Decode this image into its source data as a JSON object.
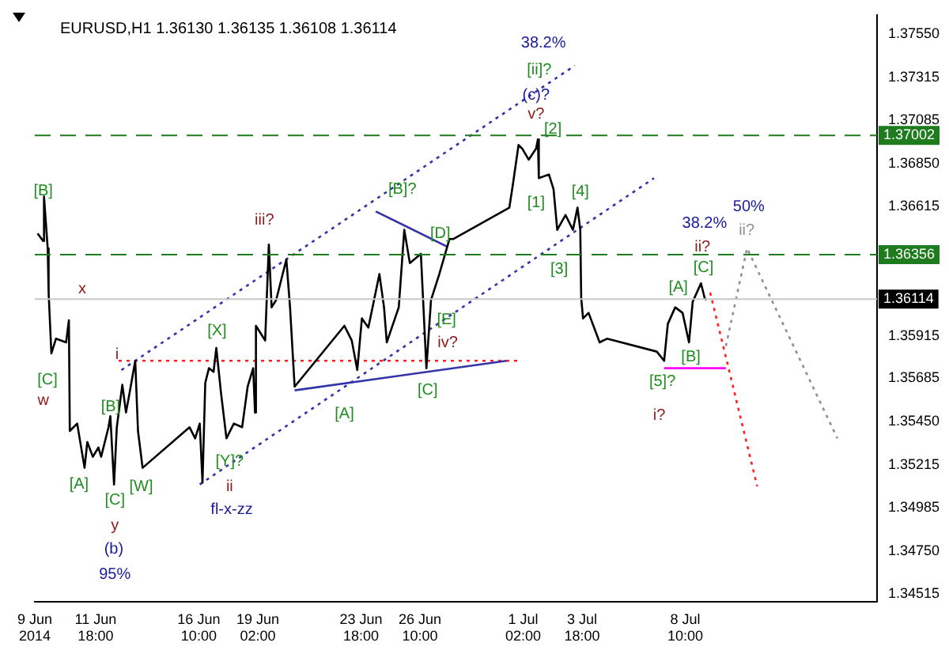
{
  "chart_data": {
    "type": "line",
    "title": "EURUSD,H1 1.36130 1.36135 1.36108 1.36114",
    "legend": false,
    "grid": false,
    "marker": "none",
    "xlim": [
      "2014-06-09T00:00",
      "2014-07-17T02:00"
    ],
    "ylim": [
      1.34475,
      1.37655
    ],
    "xticks": [
      {
        "value": "2014-06-09T00:00",
        "label": "9 Jun 2014"
      },
      {
        "value": "2014-06-11T18:00",
        "label": "11 Jun 18:00"
      },
      {
        "value": "2014-06-16T10:00",
        "label": "16 Jun 10:00"
      },
      {
        "value": "2014-06-19T02:00",
        "label": "19 Jun 02:00"
      },
      {
        "value": "2014-06-23T18:00",
        "label": "23 Jun 18:00"
      },
      {
        "value": "2014-06-26T10:00",
        "label": "26 Jun 10:00"
      },
      {
        "value": "2014-07-01T02:00",
        "label": "1 Jul 02:00"
      },
      {
        "value": "2014-07-03T18:00",
        "label": "3 Jul 18:00"
      },
      {
        "value": "2014-07-08T10:00",
        "label": "8 Jul 10:00"
      }
    ],
    "yticks": [
      {
        "value": 1.34515,
        "label": "1.34515"
      },
      {
        "value": 1.3475,
        "label": "1.34750"
      },
      {
        "value": 1.34985,
        "label": "1.34985"
      },
      {
        "value": 1.35215,
        "label": "1.35215"
      },
      {
        "value": 1.3545,
        "label": "1.35450"
      },
      {
        "value": 1.35685,
        "label": "1.35685"
      },
      {
        "value": 1.35915,
        "label": "1.35915"
      },
      {
        "value": 1.36615,
        "label": "1.36615"
      },
      {
        "value": 1.3685,
        "label": "1.36850"
      },
      {
        "value": 1.37085,
        "label": "1.37085"
      },
      {
        "value": 1.37315,
        "label": "1.37315"
      },
      {
        "value": 1.3755,
        "label": "1.37550"
      }
    ],
    "ref_lines": [
      {
        "axis": "y",
        "value": 1.37002,
        "label": "1.37002",
        "color": "#1e7b1e",
        "line_style": "dashed"
      },
      {
        "axis": "y",
        "value": 1.36356,
        "label": "1.36356",
        "color": "#1e7b1e",
        "line_style": "dashed"
      },
      {
        "axis": "y",
        "value": 1.36114,
        "label": "1.36114",
        "color": "#c8c8c8",
        "line_style": "solid"
      }
    ],
    "series": [
      {
        "color": "#000000",
        "line_style": "solid",
        "x": [
          "2014-06-09T03:00",
          "2014-06-09T09:00",
          "2014-06-09T10:00",
          "2014-06-09T14:00",
          "2014-06-09T15:00",
          "2014-06-09T18:00",
          "2014-06-09T23:00",
          "2014-06-10T10:00",
          "2014-06-10T13:00",
          "2014-06-10T14:00",
          "2014-06-10T22:00",
          "2014-06-11T06:00",
          "2014-06-11T09:00",
          "2014-06-11T15:00",
          "2014-06-11T21:00",
          "2014-06-12T00:00",
          "2014-06-12T08:00",
          "2014-06-12T10:00",
          "2014-06-12T14:00",
          "2014-06-12T17:00",
          "2014-06-12T23:00",
          "2014-06-13T03:00",
          "2014-06-13T07:00",
          "2014-06-13T13:00",
          "2014-06-13T16:00",
          "2014-06-13T21:00",
          "2014-06-16T00:00",
          "2014-06-16T06:00",
          "2014-06-16T11:00",
          "2014-06-16T14:00",
          "2014-06-16T17:00",
          "2014-06-16T21:00",
          "2014-06-17T02:00",
          "2014-06-17T05:00",
          "2014-06-17T10:00",
          "2014-06-17T16:00",
          "2014-06-18T00:00",
          "2014-06-18T09:00",
          "2014-06-18T15:00",
          "2014-06-18T21:00",
          "2014-06-18T23:00",
          "2014-06-19T00:00",
          "2014-06-19T10:00",
          "2014-06-19T14:00",
          "2014-06-19T17:00",
          "2014-06-19T22:00",
          "2014-06-20T09:00",
          "2014-06-20T13:00",
          "2014-06-20T18:00",
          "2014-06-23T00:00",
          "2014-06-23T08:00",
          "2014-06-23T14:00",
          "2014-06-23T19:00",
          "2014-06-24T02:00",
          "2014-06-24T14:00",
          "2014-06-24T19:00",
          "2014-06-24T22:00",
          "2014-06-25T11:00",
          "2014-06-25T17:00",
          "2014-06-25T23:00",
          "2014-06-26T11:00",
          "2014-06-26T17:00",
          "2014-06-26T22:00",
          "2014-06-27T07:00",
          "2014-06-27T18:00",
          "2014-06-27T22:00",
          "2014-06-30T11:00",
          "2014-06-30T15:00",
          "2014-06-30T21:00",
          "2014-07-01T01:00",
          "2014-07-01T08:00",
          "2014-07-01T16:00",
          "2014-07-01T18:00",
          "2014-07-01T19:00",
          "2014-07-02T06:00",
          "2014-07-02T11:00",
          "2014-07-02T15:00",
          "2014-07-03T00:00",
          "2014-07-03T08:00",
          "2014-07-03T13:00",
          "2014-07-03T16:00",
          "2014-07-03T17:00",
          "2014-07-03T19:00",
          "2014-07-04T01:00",
          "2014-07-04T13:00",
          "2014-07-04T21:00",
          "2014-07-07T03:00",
          "2014-07-07T11:00",
          "2014-07-07T15:00",
          "2014-07-07T23:00",
          "2014-07-08T07:00",
          "2014-07-08T14:00",
          "2014-07-08T18:00",
          "2014-07-09T03:00",
          "2014-07-09T07:00",
          "2014-07-09T09:00"
        ],
        "values": [
          1.3647,
          1.3643,
          1.3667,
          1.3639,
          1.3615,
          1.3582,
          1.359,
          1.3588,
          1.36,
          1.354,
          1.3544,
          1.352,
          1.3534,
          1.3526,
          1.3531,
          1.3526,
          1.3542,
          1.3548,
          1.3511,
          1.3542,
          1.3565,
          1.355,
          1.3561,
          1.3578,
          1.354,
          1.352,
          1.3542,
          1.3536,
          1.3544,
          1.3512,
          1.3566,
          1.3574,
          1.3572,
          1.3585,
          1.3561,
          1.3536,
          1.3544,
          1.3542,
          1.3564,
          1.3574,
          1.355,
          1.3597,
          1.3589,
          1.3641,
          1.3607,
          1.3611,
          1.3633,
          1.3607,
          1.3564,
          1.3597,
          1.3589,
          1.3573,
          1.3601,
          1.3596,
          1.3625,
          1.3607,
          1.3588,
          1.3607,
          1.3649,
          1.3631,
          1.3636,
          1.3574,
          1.3611,
          1.3625,
          1.3644,
          1.3644,
          1.3661,
          1.3674,
          1.3695,
          1.3693,
          1.3687,
          1.3693,
          1.3698,
          1.3677,
          1.3679,
          1.3671,
          1.3649,
          1.3657,
          1.3649,
          1.3661,
          1.3649,
          1.3612,
          1.3601,
          1.3604,
          1.3588,
          1.359,
          1.3583,
          1.3578,
          1.3598,
          1.3607,
          1.3604,
          1.3588,
          1.361,
          1.362,
          1.3612,
          1.3611
        ]
      },
      {
        "color": "#3333aa",
        "line_style": "dotted",
        "x": [
          "2014-06-12T22:00",
          "2014-07-03T10:00"
        ],
        "values": [
          1.3573,
          1.3738
        ]
      },
      {
        "color": "#3333aa",
        "line_style": "dotted",
        "x": [
          "2014-06-16T11:00",
          "2014-07-07T00:00"
        ],
        "values": [
          1.3511,
          1.3677
        ]
      },
      {
        "color": "#3333aa",
        "line_style": "solid",
        "x": [
          "2014-06-24T10:00",
          "2014-06-27T15:00"
        ],
        "values": [
          1.3659,
          1.364
        ]
      },
      {
        "color": "#3333aa",
        "line_style": "solid",
        "x": [
          "2014-06-20T18:00",
          "2014-06-30T08:00"
        ],
        "values": [
          1.3562,
          1.3578
        ]
      },
      {
        "color": "#ff2020",
        "line_style": "dotted",
        "x": [
          "2014-06-12T19:00",
          "2014-06-30T21:00"
        ],
        "values": [
          1.3578,
          1.3578
        ]
      },
      {
        "color": "#ff00ff",
        "line_style": "solid",
        "x": [
          "2014-07-07T11:00",
          "2014-07-10T06:00"
        ],
        "values": [
          1.3574,
          1.3574
        ]
      },
      {
        "color": "#ff2020",
        "line_style": "dotted",
        "x": [
          "2014-07-09T13:00",
          "2014-07-11T16:00"
        ],
        "values": [
          1.3615,
          1.351
        ]
      },
      {
        "color": "#909090",
        "line_style": "dotted",
        "x": [
          "2014-07-10T06:00",
          "2014-07-11T05:00",
          "2014-07-15T07:00"
        ],
        "values": [
          1.3586,
          1.3639,
          1.3536
        ]
      }
    ],
    "annotations": [
      "[B]",
      "[C]",
      "w",
      "x",
      "i",
      "[B]",
      "[A]",
      "[C]",
      "y",
      "(b)",
      "95%",
      "[W]",
      "[X]",
      "[Y]?",
      "ii",
      "fl-x-zz",
      "iii?",
      "[B]?",
      "[D]",
      "[A]",
      "[E]",
      "iv?",
      "[C]",
      "38.2%",
      "[ii]?",
      "(c)?",
      "v?",
      "[2]",
      "[1]",
      "[3]",
      "[4]",
      "38.2%",
      "ii?",
      "[C]",
      "[A]",
      "[B]",
      "[5]?",
      "i?",
      "50%",
      "ii?"
    ]
  }
}
